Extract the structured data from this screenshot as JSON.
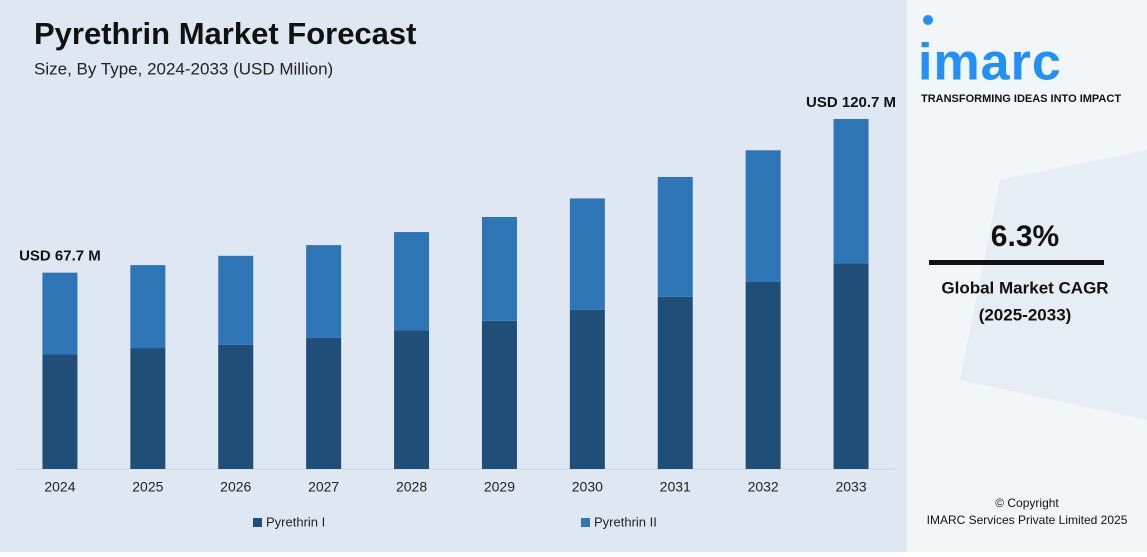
{
  "chart_data": {
    "type": "stacked-bar",
    "title": "Pyrethrin Market Forecast",
    "subtitle": "Size, By Type, 2024-2033 (USD Million)",
    "categories": [
      "2024",
      "2025",
      "2026",
      "2027",
      "2028",
      "2029",
      "2030",
      "2031",
      "2032",
      "2033"
    ],
    "series": [
      {
        "name": "Pyrethrin I",
        "color": "#1f4e79",
        "values": [
          39.5,
          41.7,
          42.8,
          45.2,
          47.8,
          51.1,
          54.9,
          59.4,
          64.5,
          70.9
        ]
      },
      {
        "name": "Pyrethrin II",
        "color": "#2e75b6",
        "values": [
          28.2,
          28.6,
          30.7,
          32.0,
          33.9,
          35.8,
          38.4,
          41.3,
          45.4,
          49.8
        ]
      }
    ],
    "total_labels": [
      {
        "category": 0,
        "label": "USD 67.7 M"
      },
      {
        "category": 9,
        "label": "USD 120.7 M"
      }
    ],
    "ylim": [
      0,
      130
    ]
  },
  "sidebar": {
    "logo": "imarc",
    "tagline": "TRANSFORMING IDEAS INTO IMPACT",
    "cagr": "6.3%",
    "cagr_label": "Global Market CAGR",
    "cagr_period": "(2025-2033)",
    "copyright": "© Copyright",
    "company": "IMARC Services Private Limited 2025"
  }
}
